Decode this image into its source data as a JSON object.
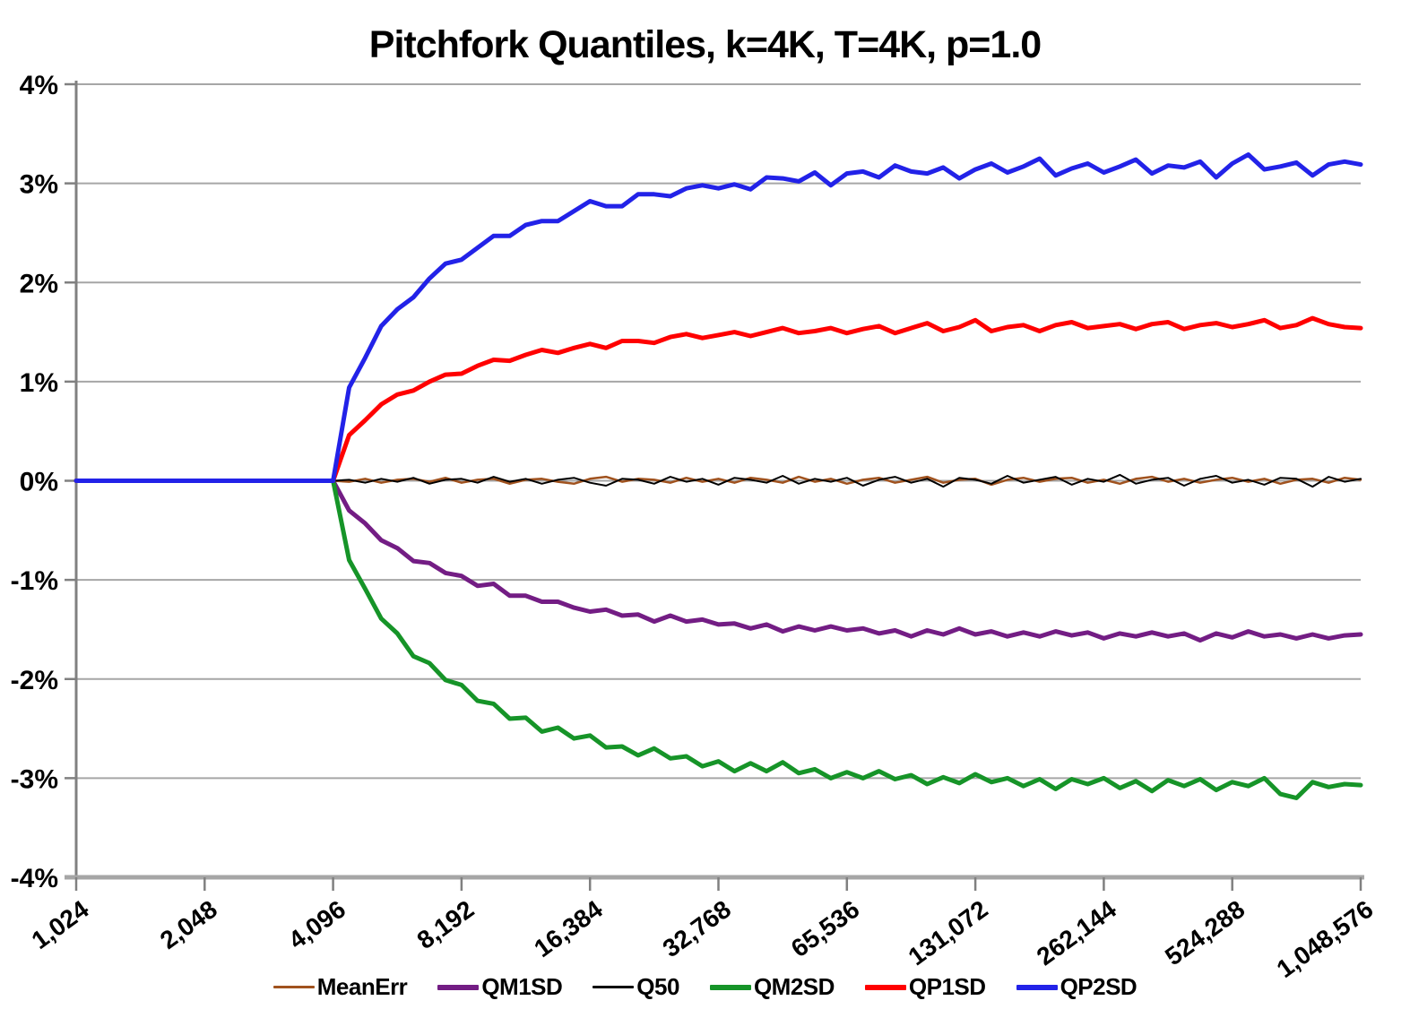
{
  "chart_data": {
    "type": "line",
    "title": "Pitchfork Quantiles, k=4K, T=4K, p=1.0",
    "xlabel": "",
    "ylabel": "",
    "x_scale": "log2",
    "xlim": [
      1024,
      1048576
    ],
    "ylim": [
      -4,
      4
    ],
    "grid": "horizontal",
    "legend_position": "bottom",
    "y_ticks": [
      {
        "label": "4%",
        "value": 4
      },
      {
        "label": "3%",
        "value": 3
      },
      {
        "label": "2%",
        "value": 2
      },
      {
        "label": "1%",
        "value": 1
      },
      {
        "label": "0%",
        "value": 0
      },
      {
        "label": "-1%",
        "value": -1
      },
      {
        "label": "-2%",
        "value": -2
      },
      {
        "label": "-3%",
        "value": -3
      },
      {
        "label": "-4%",
        "value": -4
      }
    ],
    "x_ticks": [
      {
        "label": "1,024",
        "value": 1024
      },
      {
        "label": "2,048",
        "value": 2048
      },
      {
        "label": "4,096",
        "value": 4096
      },
      {
        "label": "8,192",
        "value": 8192
      },
      {
        "label": "16,384",
        "value": 16384
      },
      {
        "label": "32,768",
        "value": 32768
      },
      {
        "label": "65,536",
        "value": 65536
      },
      {
        "label": "131,072",
        "value": 131072
      },
      {
        "label": "262,144",
        "value": 262144
      },
      {
        "label": "524,288",
        "value": 524288
      },
      {
        "label": "1,048,576",
        "value": 1048576
      }
    ],
    "x": [
      1024,
      4096,
      4467,
      4871,
      5312,
      5793,
      6317,
      6889,
      7512,
      8192,
      8933,
      9742,
      10624,
      11585,
      12634,
      13777,
      15024,
      16384,
      17867,
      19484,
      21247,
      23170,
      25268,
      27554,
      30048,
      32768,
      35734,
      38968,
      42495,
      46341,
      50535,
      55109,
      60097,
      65536,
      71468,
      77936,
      84990,
      92682,
      101070,
      110218,
      120194,
      131072,
      142935,
      155872,
      169980,
      185364,
      202141,
      220436,
      240388,
      262144,
      285870,
      311744,
      339959,
      370728,
      404281,
      440872,
      480776,
      524288,
      571741,
      623487,
      679918,
      741455,
      808563,
      881744,
      961548,
      1048576
    ],
    "series": [
      {
        "name": "MeanErr",
        "color": "#A0521E",
        "stroke_width": 2.5,
        "values": [
          0.0,
          0.0,
          -0.01,
          0.02,
          -0.02,
          0.01,
          0.02,
          -0.01,
          0.03,
          -0.02,
          0.01,
          0.02,
          -0.03,
          0.01,
          0.02,
          -0.01,
          -0.03,
          0.02,
          0.04,
          -0.01,
          0.02,
          0.01,
          -0.02,
          0.03,
          -0.01,
          0.02,
          -0.02,
          0.03,
          0.01,
          -0.02,
          0.04,
          -0.01,
          0.02,
          -0.03,
          0.01,
          0.03,
          -0.02,
          0.01,
          0.04,
          -0.02,
          0.01,
          0.02,
          -0.04,
          0.01,
          0.03,
          -0.01,
          0.02,
          0.03,
          -0.02,
          0.01,
          -0.03,
          0.02,
          0.04,
          -0.01,
          0.02,
          -0.02,
          0.01,
          0.03,
          -0.01,
          0.02,
          -0.03,
          0.01,
          0.02,
          -0.02,
          0.03,
          0.01
        ]
      },
      {
        "name": "QM1SD",
        "color": "#731D84",
        "stroke_width": 5,
        "values": [
          0.0,
          0.0,
          -0.3,
          -0.43,
          -0.6,
          -0.68,
          -0.81,
          -0.83,
          -0.93,
          -0.96,
          -1.06,
          -1.04,
          -1.16,
          -1.16,
          -1.22,
          -1.22,
          -1.28,
          -1.32,
          -1.3,
          -1.36,
          -1.35,
          -1.42,
          -1.36,
          -1.42,
          -1.4,
          -1.45,
          -1.44,
          -1.49,
          -1.45,
          -1.52,
          -1.47,
          -1.51,
          -1.47,
          -1.51,
          -1.49,
          -1.54,
          -1.51,
          -1.57,
          -1.51,
          -1.55,
          -1.49,
          -1.55,
          -1.52,
          -1.57,
          -1.53,
          -1.57,
          -1.52,
          -1.56,
          -1.53,
          -1.59,
          -1.54,
          -1.57,
          -1.53,
          -1.57,
          -1.54,
          -1.61,
          -1.54,
          -1.58,
          -1.52,
          -1.57,
          -1.55,
          -1.59,
          -1.55,
          -1.59,
          -1.56,
          -1.55
        ]
      },
      {
        "name": "Q50",
        "color": "#000000",
        "stroke_width": 2,
        "values": [
          0.0,
          0.0,
          0.01,
          -0.02,
          0.02,
          -0.01,
          0.03,
          -0.03,
          0.01,
          0.02,
          -0.02,
          0.04,
          -0.01,
          0.02,
          -0.03,
          0.01,
          0.03,
          -0.02,
          -0.05,
          0.02,
          0.01,
          -0.03,
          0.04,
          -0.01,
          0.02,
          -0.04,
          0.03,
          0.01,
          -0.02,
          0.05,
          -0.03,
          0.02,
          -0.01,
          0.03,
          -0.05,
          0.01,
          0.04,
          -0.02,
          0.02,
          -0.06,
          0.03,
          0.01,
          -0.03,
          0.05,
          -0.02,
          0.01,
          0.04,
          -0.04,
          0.02,
          -0.01,
          0.06,
          -0.03,
          0.01,
          0.03,
          -0.05,
          0.02,
          0.05,
          -0.02,
          0.01,
          -0.04,
          0.03,
          0.02,
          -0.06,
          0.04,
          -0.01,
          0.02
        ]
      },
      {
        "name": "QM2SD",
        "color": "#169428",
        "stroke_width": 5,
        "values": [
          0.0,
          0.0,
          -0.8,
          -1.09,
          -1.39,
          -1.54,
          -1.77,
          -1.84,
          -2.01,
          -2.06,
          -2.22,
          -2.25,
          -2.4,
          -2.39,
          -2.53,
          -2.49,
          -2.6,
          -2.57,
          -2.69,
          -2.68,
          -2.77,
          -2.7,
          -2.8,
          -2.78,
          -2.88,
          -2.83,
          -2.93,
          -2.85,
          -2.93,
          -2.84,
          -2.95,
          -2.91,
          -3.0,
          -2.94,
          -3.0,
          -2.93,
          -3.01,
          -2.97,
          -3.06,
          -2.99,
          -3.05,
          -2.96,
          -3.04,
          -3.0,
          -3.08,
          -3.01,
          -3.11,
          -3.01,
          -3.06,
          -3.0,
          -3.1,
          -3.03,
          -3.13,
          -3.02,
          -3.08,
          -3.01,
          -3.12,
          -3.04,
          -3.08,
          -3.0,
          -3.16,
          -3.2,
          -3.04,
          -3.09,
          -3.06,
          -3.07
        ]
      },
      {
        "name": "QP1SD",
        "color": "#FF0000",
        "stroke_width": 5,
        "values": [
          0.0,
          0.0,
          0.46,
          0.61,
          0.77,
          0.87,
          0.91,
          1.0,
          1.07,
          1.08,
          1.16,
          1.22,
          1.21,
          1.27,
          1.32,
          1.29,
          1.34,
          1.38,
          1.34,
          1.41,
          1.41,
          1.39,
          1.45,
          1.48,
          1.44,
          1.47,
          1.5,
          1.46,
          1.5,
          1.54,
          1.49,
          1.51,
          1.54,
          1.49,
          1.53,
          1.56,
          1.49,
          1.54,
          1.59,
          1.51,
          1.55,
          1.62,
          1.51,
          1.55,
          1.57,
          1.51,
          1.57,
          1.6,
          1.54,
          1.56,
          1.58,
          1.53,
          1.58,
          1.6,
          1.53,
          1.57,
          1.59,
          1.55,
          1.58,
          1.62,
          1.54,
          1.57,
          1.64,
          1.58,
          1.55,
          1.54
        ]
      },
      {
        "name": "QP2SD",
        "color": "#2222E8",
        "stroke_width": 5,
        "values": [
          0.0,
          0.0,
          0.94,
          1.24,
          1.56,
          1.73,
          1.85,
          2.04,
          2.19,
          2.23,
          2.35,
          2.47,
          2.47,
          2.58,
          2.62,
          2.62,
          2.72,
          2.82,
          2.77,
          2.77,
          2.89,
          2.89,
          2.87,
          2.95,
          2.98,
          2.95,
          2.99,
          2.94,
          3.06,
          3.05,
          3.02,
          3.11,
          2.98,
          3.1,
          3.12,
          3.06,
          3.18,
          3.12,
          3.1,
          3.16,
          3.05,
          3.14,
          3.2,
          3.11,
          3.17,
          3.25,
          3.08,
          3.15,
          3.2,
          3.11,
          3.17,
          3.24,
          3.1,
          3.18,
          3.16,
          3.22,
          3.06,
          3.2,
          3.29,
          3.14,
          3.17,
          3.21,
          3.08,
          3.19,
          3.22,
          3.19
        ]
      }
    ],
    "colors": {
      "gridline": "#A6A6A6",
      "axis": "#808080",
      "x_axis_line": "#A6A6A6",
      "text": "#000000",
      "background": "#FFFFFF"
    }
  }
}
